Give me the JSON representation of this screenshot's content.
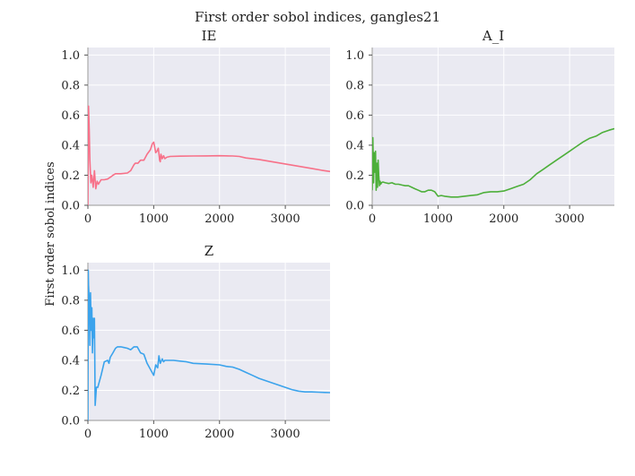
{
  "figure": {
    "title": "First order sobol indices, gangles21",
    "ylabel": "First order sobol indices"
  },
  "chart_data": [
    {
      "type": "line",
      "title": "IE",
      "color": "#f77189",
      "xlim": [
        0,
        3680
      ],
      "ylim": [
        0,
        1.05
      ],
      "xticks": [
        0,
        1000,
        2000,
        3000
      ],
      "yticks": [
        0.0,
        0.2,
        0.4,
        0.6,
        0.8,
        1.0
      ],
      "grid": true,
      "x": [
        0,
        10,
        20,
        30,
        45,
        60,
        80,
        100,
        120,
        140,
        160,
        200,
        250,
        300,
        350,
        380,
        420,
        500,
        600,
        650,
        700,
        720,
        760,
        800,
        850,
        900,
        950,
        980,
        1000,
        1010,
        1030,
        1050,
        1070,
        1090,
        1100,
        1110,
        1130,
        1150,
        1170,
        1200,
        1250,
        1400,
        1600,
        1800,
        2000,
        2200,
        2300,
        2400,
        2600,
        2800,
        3000,
        3200,
        3400,
        3550,
        3680
      ],
      "y": [
        0.0,
        0.66,
        0.5,
        0.3,
        0.15,
        0.2,
        0.12,
        0.23,
        0.11,
        0.16,
        0.14,
        0.17,
        0.17,
        0.175,
        0.19,
        0.2,
        0.21,
        0.21,
        0.215,
        0.23,
        0.27,
        0.28,
        0.28,
        0.3,
        0.3,
        0.34,
        0.37,
        0.41,
        0.42,
        0.4,
        0.35,
        0.36,
        0.38,
        0.3,
        0.29,
        0.34,
        0.31,
        0.33,
        0.31,
        0.32,
        0.325,
        0.327,
        0.328,
        0.329,
        0.33,
        0.328,
        0.325,
        0.315,
        0.305,
        0.29,
        0.275,
        0.26,
        0.245,
        0.233,
        0.225
      ]
    },
    {
      "type": "line",
      "title": "A_I",
      "color": "#4daf3a",
      "xlim": [
        0,
        3680
      ],
      "ylim": [
        0,
        1.05
      ],
      "xticks": [
        0,
        1000,
        2000,
        3000
      ],
      "yticks": [
        0.0,
        0.2,
        0.4,
        0.6,
        0.8,
        1.0
      ],
      "grid": true,
      "x": [
        0,
        10,
        20,
        30,
        40,
        50,
        60,
        70,
        80,
        90,
        100,
        110,
        120,
        130,
        140,
        160,
        200,
        250,
        300,
        350,
        400,
        450,
        500,
        550,
        600,
        650,
        700,
        750,
        800,
        850,
        900,
        950,
        1000,
        1050,
        1100,
        1200,
        1300,
        1400,
        1500,
        1600,
        1700,
        1800,
        1900,
        2000,
        2100,
        2200,
        2300,
        2400,
        2500,
        2600,
        2700,
        2800,
        2900,
        3000,
        3100,
        3200,
        3300,
        3400,
        3500,
        3600,
        3680
      ],
      "y": [
        0.1,
        0.45,
        0.15,
        0.35,
        0.22,
        0.36,
        0.1,
        0.28,
        0.12,
        0.3,
        0.2,
        0.13,
        0.16,
        0.14,
        0.15,
        0.155,
        0.15,
        0.145,
        0.15,
        0.14,
        0.14,
        0.135,
        0.13,
        0.13,
        0.12,
        0.11,
        0.1,
        0.09,
        0.09,
        0.1,
        0.1,
        0.09,
        0.06,
        0.065,
        0.06,
        0.055,
        0.055,
        0.06,
        0.065,
        0.07,
        0.085,
        0.09,
        0.09,
        0.095,
        0.11,
        0.125,
        0.14,
        0.17,
        0.21,
        0.24,
        0.27,
        0.3,
        0.33,
        0.36,
        0.39,
        0.42,
        0.445,
        0.46,
        0.485,
        0.5,
        0.51
      ]
    },
    {
      "type": "line",
      "title": "Z",
      "color": "#3ba3ec",
      "xlim": [
        0,
        3680
      ],
      "ylim": [
        0,
        1.05
      ],
      "xticks": [
        0,
        1000,
        2000,
        3000
      ],
      "yticks": [
        0.0,
        0.2,
        0.4,
        0.6,
        0.8,
        1.0
      ],
      "grid": true,
      "x": [
        0,
        5,
        10,
        20,
        30,
        40,
        50,
        60,
        70,
        80,
        90,
        100,
        110,
        130,
        150,
        200,
        250,
        300,
        320,
        340,
        380,
        420,
        450,
        500,
        550,
        600,
        650,
        700,
        750,
        800,
        850,
        900,
        950,
        1000,
        1030,
        1060,
        1080,
        1100,
        1130,
        1150,
        1170,
        1200,
        1300,
        1400,
        1500,
        1600,
        1800,
        2000,
        2100,
        2200,
        2300,
        2400,
        2500,
        2600,
        2700,
        2800,
        2900,
        3000,
        3100,
        3200,
        3300,
        3400,
        3500,
        3600,
        3680
      ],
      "y": [
        0.0,
        1.0,
        0.9,
        0.8,
        0.5,
        0.85,
        0.6,
        0.75,
        0.45,
        0.68,
        0.55,
        0.68,
        0.1,
        0.22,
        0.22,
        0.3,
        0.39,
        0.4,
        0.38,
        0.42,
        0.45,
        0.48,
        0.49,
        0.49,
        0.485,
        0.48,
        0.47,
        0.49,
        0.49,
        0.45,
        0.44,
        0.38,
        0.34,
        0.3,
        0.37,
        0.35,
        0.43,
        0.38,
        0.41,
        0.39,
        0.4,
        0.4,
        0.4,
        0.395,
        0.39,
        0.38,
        0.375,
        0.37,
        0.36,
        0.355,
        0.34,
        0.32,
        0.3,
        0.28,
        0.265,
        0.25,
        0.235,
        0.22,
        0.205,
        0.195,
        0.19,
        0.19,
        0.188,
        0.186,
        0.185
      ]
    }
  ]
}
